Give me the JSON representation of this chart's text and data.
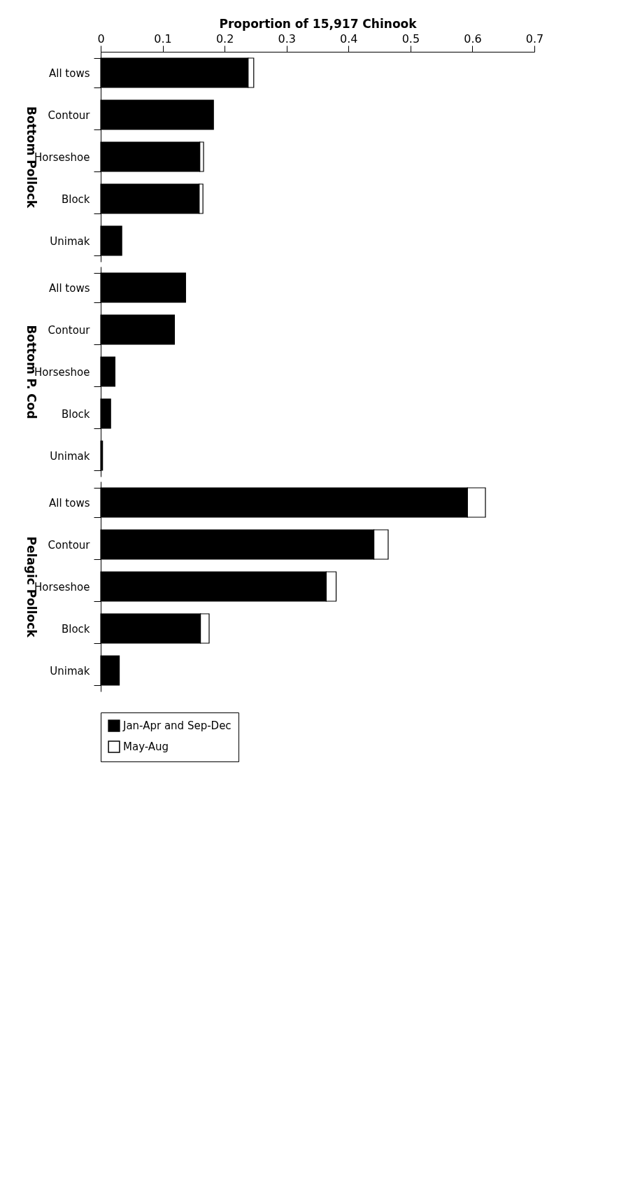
{
  "chart_data": [
    {
      "type": "bar",
      "orientation": "horizontal",
      "stacked": true,
      "xlabel": "Proportion of 15,917 Chinook",
      "ylabel": "Bottom Pollock",
      "categories": [
        "All tows",
        "Contour",
        "Horseshoe",
        "Block",
        "Unimak"
      ],
      "xlim": [
        0,
        0.7
      ],
      "xticks": [
        0,
        0.1,
        0.2,
        0.3,
        0.4,
        0.5,
        0.6,
        0.7
      ],
      "series": [
        {
          "color": "#000000",
          "values": [
            0.238,
            0.182,
            0.16,
            0.159,
            0.034
          ]
        },
        {
          "color": "#ffffff",
          "values": [
            0.009,
            null,
            0.006,
            0.006,
            null
          ]
        }
      ]
    },
    {
      "type": "bar",
      "orientation": "horizontal",
      "stacked": true,
      "ylabel": "Bottom P. Cod",
      "categories": [
        "All tows",
        "Contour",
        "Horseshoe",
        "Block",
        "Unimak"
      ],
      "xlim": [
        0,
        0.7
      ],
      "xticks": [
        0,
        0.1,
        0.2,
        0.3,
        0.4,
        0.5,
        0.6,
        0.7
      ],
      "tick_labels": "y",
      "series": [
        {
          "color": "#000000",
          "values": [
            0.137,
            0.119,
            0.023,
            0.016,
            0.003
          ]
        },
        {
          "color": "#ffffff",
          "values": [
            null,
            null,
            null,
            null,
            null
          ]
        }
      ]
    },
    {
      "type": "bar",
      "orientation": "horizontal",
      "stacked": true,
      "ylabel": "Pelagic Pollock",
      "categories": [
        "All tows",
        "Contour",
        "Horseshoe",
        "Block",
        "Unimak"
      ],
      "xlim": [
        0,
        0.7
      ],
      "xticks": [
        0,
        0.1,
        0.2,
        0.3,
        0.4,
        0.5,
        0.6,
        0.7
      ],
      "tick_labels": "y",
      "legend": "bottom",
      "series": [
        {
          "name": "Jan-Apr and Sep-Dec",
          "color": "#000000",
          "values": [
            0.592,
            0.441,
            0.364,
            0.161,
            0.03
          ]
        },
        {
          "name": "May-Aug",
          "color": "#ffffff",
          "values": [
            0.029,
            0.023,
            0.016,
            0.014,
            null
          ]
        }
      ]
    }
  ]
}
